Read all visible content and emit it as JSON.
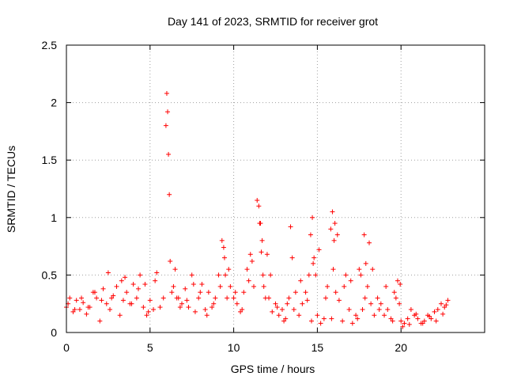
{
  "chart_data": {
    "type": "scatter",
    "title": "Day 141 of 2023, SRMTID for receiver grot",
    "xlabel": "GPS time / hours",
    "ylabel": "SRMTID / TECUs",
    "xlim": [
      0,
      25
    ],
    "ylim": [
      0,
      2.5
    ],
    "xticks": [
      0,
      5,
      10,
      15,
      20
    ],
    "yticks": [
      0,
      0.5,
      1,
      1.5,
      2,
      2.5
    ],
    "xtick_labels": [
      "0",
      "5",
      "10",
      "15",
      "20"
    ],
    "ytick_labels": [
      "0",
      "0.5",
      "1",
      "1.5",
      "2",
      "2.5"
    ],
    "grid": true,
    "marker": "plus",
    "color": "#ff0000",
    "series": [
      {
        "name": "SRMTID",
        "x": [
          0.0,
          0.2,
          0.4,
          0.6,
          0.8,
          1.0,
          1.2,
          1.4,
          1.6,
          1.8,
          2.0,
          2.2,
          2.4,
          2.5,
          2.6,
          2.8,
          3.0,
          3.2,
          3.4,
          3.5,
          3.6,
          3.8,
          4.0,
          4.2,
          4.4,
          4.6,
          4.7,
          4.8,
          5.0,
          5.2,
          5.4,
          5.6,
          5.8,
          5.95,
          6.0,
          6.05,
          6.1,
          6.15,
          6.2,
          6.3,
          6.5,
          6.7,
          6.9,
          7.1,
          7.3,
          7.5,
          7.7,
          7.9,
          8.1,
          8.3,
          8.5,
          8.7,
          8.9,
          9.1,
          9.3,
          9.4,
          9.5,
          9.6,
          9.8,
          10.0,
          10.2,
          10.4,
          10.6,
          10.8,
          11.0,
          11.2,
          11.4,
          11.5,
          11.6,
          11.7,
          11.8,
          11.9,
          12.0,
          12.1,
          12.3,
          12.5,
          12.7,
          12.9,
          13.1,
          13.3,
          13.4,
          13.5,
          13.7,
          13.9,
          14.1,
          14.3,
          14.5,
          14.6,
          14.7,
          14.8,
          14.9,
          15.0,
          15.2,
          15.4,
          15.6,
          15.8,
          15.9,
          16.0,
          16.1,
          16.3,
          16.5,
          16.7,
          16.9,
          17.1,
          17.3,
          17.5,
          17.7,
          17.8,
          17.9,
          18.0,
          18.2,
          18.4,
          18.6,
          18.8,
          19.0,
          19.2,
          19.4,
          19.6,
          19.8,
          19.9,
          20.0,
          20.2,
          20.4,
          20.6,
          20.8,
          21.0,
          21.2,
          21.4,
          21.6,
          21.8,
          22.0,
          22.2,
          22.4,
          22.6,
          22.8,
          0.1,
          0.5,
          0.9,
          1.3,
          1.7,
          2.1,
          2.7,
          3.3,
          3.9,
          4.3,
          4.9,
          5.3,
          6.4,
          6.6,
          6.8,
          7.2,
          7.6,
          8.0,
          8.4,
          8.8,
          9.2,
          9.45,
          9.7,
          10.1,
          10.5,
          10.9,
          11.1,
          11.55,
          11.65,
          11.75,
          12.2,
          12.6,
          13.0,
          13.2,
          13.6,
          14.0,
          14.4,
          14.65,
          14.75,
          15.1,
          15.5,
          15.85,
          15.95,
          16.05,
          16.2,
          16.6,
          17.0,
          17.4,
          17.6,
          17.85,
          18.1,
          18.3,
          18.7,
          19.1,
          19.5,
          19.7,
          19.95,
          20.1,
          20.5,
          20.9,
          21.3,
          21.7,
          22.1,
          22.5,
          22.7
        ],
        "y": [
          0.22,
          0.3,
          0.18,
          0.28,
          0.2,
          0.26,
          0.16,
          0.22,
          0.35,
          0.3,
          0.1,
          0.38,
          0.25,
          0.52,
          0.2,
          0.32,
          0.4,
          0.15,
          0.28,
          0.48,
          0.35,
          0.25,
          0.42,
          0.3,
          0.5,
          0.22,
          0.42,
          0.15,
          0.28,
          0.2,
          0.52,
          0.22,
          0.3,
          1.8,
          2.08,
          1.92,
          1.55,
          1.2,
          0.62,
          0.35,
          0.55,
          0.3,
          0.25,
          0.38,
          0.22,
          0.5,
          0.18,
          0.3,
          0.42,
          0.2,
          0.35,
          0.22,
          0.3,
          0.5,
          0.8,
          0.74,
          0.5,
          0.3,
          0.4,
          0.3,
          0.25,
          0.18,
          0.35,
          0.55,
          0.68,
          0.4,
          1.15,
          1.1,
          0.95,
          0.8,
          0.4,
          0.3,
          0.68,
          0.3,
          0.18,
          0.25,
          0.15,
          0.2,
          0.12,
          0.3,
          0.92,
          0.65,
          0.35,
          0.15,
          0.25,
          0.35,
          0.5,
          0.85,
          1.0,
          0.65,
          0.5,
          0.15,
          0.08,
          0.12,
          0.4,
          0.9,
          1.05,
          0.8,
          0.35,
          0.28,
          0.1,
          0.5,
          0.2,
          0.08,
          0.15,
          0.55,
          0.2,
          0.85,
          0.6,
          0.4,
          0.25,
          0.15,
          0.3,
          0.25,
          0.15,
          0.2,
          0.12,
          0.35,
          0.45,
          0.25,
          0.1,
          0.08,
          0.12,
          0.2,
          0.15,
          0.12,
          0.08,
          0.1,
          0.15,
          0.12,
          0.18,
          0.2,
          0.25,
          0.22,
          0.28,
          0.25,
          0.2,
          0.3,
          0.22,
          0.35,
          0.28,
          0.3,
          0.45,
          0.25,
          0.38,
          0.18,
          0.45,
          0.4,
          0.3,
          0.22,
          0.28,
          0.42,
          0.35,
          0.15,
          0.25,
          0.4,
          0.65,
          0.55,
          0.35,
          0.2,
          0.45,
          0.62,
          0.95,
          0.7,
          0.5,
          0.5,
          0.22,
          0.1,
          0.25,
          0.2,
          0.45,
          0.28,
          0.1,
          0.6,
          0.72,
          0.3,
          0.12,
          0.55,
          0.95,
          0.85,
          0.4,
          0.45,
          0.12,
          0.5,
          0.3,
          0.78,
          0.55,
          0.2,
          0.4,
          0.1,
          0.3,
          0.42,
          0.05,
          0.07,
          0.16,
          0.08,
          0.14,
          0.1,
          0.16,
          0.24
        ]
      }
    ]
  }
}
